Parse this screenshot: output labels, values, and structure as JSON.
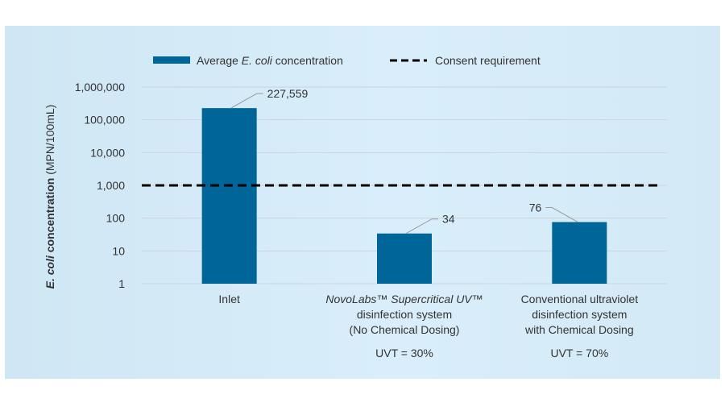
{
  "chart_data": {
    "type": "bar",
    "yscale": "log",
    "ylim": [
      1,
      1000000
    ],
    "yticks": [
      {
        "value": 1,
        "label": "1"
      },
      {
        "value": 10,
        "label": "10"
      },
      {
        "value": 100,
        "label": "100"
      },
      {
        "value": 1000,
        "label": "1,000"
      },
      {
        "value": 10000,
        "label": "10,000"
      },
      {
        "value": 100000,
        "label": "100,000"
      },
      {
        "value": 1000000,
        "label": "1,000,000"
      }
    ],
    "ylabel_italic": "E. coli",
    "ylabel_bold": " concentration",
    "ylabel_unit": " (MPN/100mL)",
    "grid": true,
    "legend": {
      "placement": "top",
      "bar_prefix": "Average ",
      "bar_italic": "E. coli",
      "bar_suffix": " concentration",
      "line_label": "Consent requirement"
    },
    "colors": {
      "bar": "#006699",
      "line": "#000000",
      "grid": "#c9d5dd",
      "leader": "#9a9a9a"
    },
    "reference_line": {
      "value": 1000,
      "style": "dashed"
    },
    "categories": [
      {
        "lines": [
          {
            "text": "Inlet"
          }
        ],
        "note": "",
        "value": 227559,
        "data_label": "227,559"
      },
      {
        "lines": [
          {
            "text": "NovoLabs™ Supercritical UV™",
            "italic": true
          },
          {
            "text": "disinfection system"
          },
          {
            "text": "(No Chemical Dosing)"
          }
        ],
        "note": "UVT = 30%",
        "value": 34,
        "data_label": "34"
      },
      {
        "lines": [
          {
            "text": "Conventional ultraviolet"
          },
          {
            "text": "disinfection system"
          },
          {
            "text": "with Chemical Dosing"
          }
        ],
        "note": "UVT = 70%",
        "value": 76,
        "data_label": "76"
      }
    ]
  }
}
